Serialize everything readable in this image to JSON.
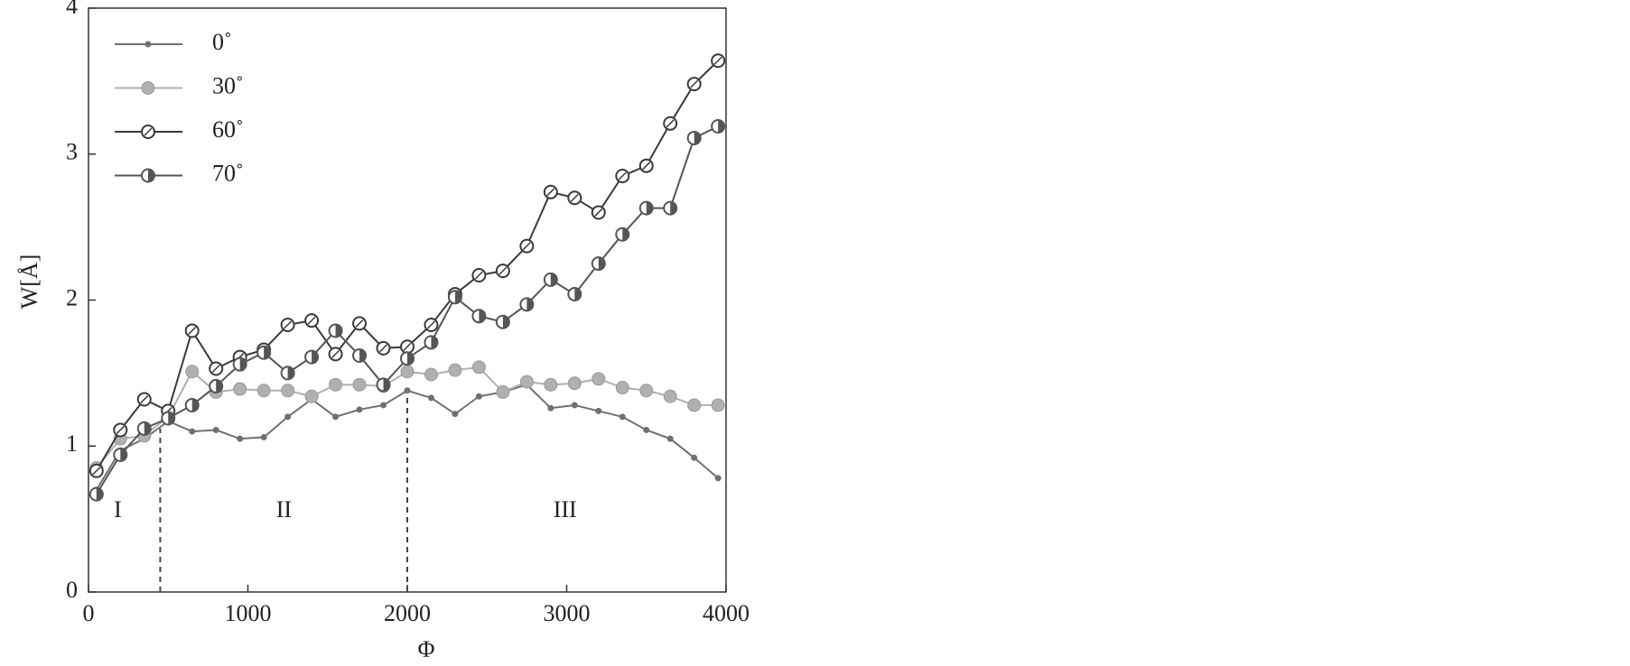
{
  "chart_data": {
    "type": "line",
    "x_label": "Φ",
    "y_label": "W[Å]",
    "x": [
      50,
      200,
      350,
      500,
      650,
      800,
      950,
      1100,
      1250,
      1400,
      1550,
      1700,
      1850,
      2000,
      2150,
      2300,
      2450,
      2600,
      2750,
      2900,
      3050,
      3200,
      3350,
      3500,
      3650,
      3800,
      3950
    ],
    "series": [
      {
        "name": "0˚",
        "color": "#707070",
        "marker": "dot",
        "values": [
          0.7,
          0.97,
          1.05,
          1.17,
          1.1,
          1.11,
          1.05,
          1.06,
          1.2,
          1.32,
          1.2,
          1.25,
          1.28,
          1.38,
          1.33,
          1.22,
          1.34,
          1.37,
          1.42,
          1.26,
          1.28,
          1.24,
          1.2,
          1.11,
          1.05,
          0.92,
          0.78
        ]
      },
      {
        "name": "30˚",
        "color": "#b0b0b0",
        "marker": "filled",
        "values": [
          0.85,
          1.05,
          1.07,
          1.2,
          1.51,
          1.37,
          1.39,
          1.38,
          1.38,
          1.34,
          1.42,
          1.42,
          1.41,
          1.51,
          1.49,
          1.52,
          1.54,
          1.37,
          1.44,
          1.42,
          1.43,
          1.46,
          1.4,
          1.38,
          1.34,
          1.28,
          1.28
        ]
      },
      {
        "name": "60˚",
        "color": "#3a3a3a",
        "marker": "open",
        "values": [
          0.83,
          1.11,
          1.32,
          1.24,
          1.79,
          1.53,
          1.61,
          1.66,
          1.83,
          1.86,
          1.63,
          1.84,
          1.67,
          1.68,
          1.83,
          2.04,
          2.17,
          2.2,
          2.37,
          2.74,
          2.7,
          2.6,
          2.85,
          2.92,
          3.21,
          3.48,
          3.64
        ]
      },
      {
        "name": "70˚",
        "color": "#555555",
        "marker": "half",
        "values": [
          0.67,
          0.94,
          1.12,
          1.19,
          1.28,
          1.41,
          1.56,
          1.64,
          1.5,
          1.61,
          1.79,
          1.62,
          1.42,
          1.6,
          1.71,
          2.02,
          1.89,
          1.85,
          1.97,
          2.14,
          2.04,
          2.25,
          2.45,
          2.63,
          2.63,
          3.11,
          3.19
        ]
      }
    ],
    "xlim": [
      0,
      4000
    ],
    "xticks": [
      0,
      1000,
      2000,
      3000,
      4000
    ],
    "ylim": [
      0,
      4
    ],
    "yticks": [
      0,
      1,
      2,
      3,
      4
    ],
    "legend": "upper left",
    "dividers": [
      {
        "x": 450,
        "y": 1.12
      },
      {
        "x": 2000,
        "y": 1.38
      }
    ],
    "annotations": [
      {
        "text": "I",
        "x": 184,
        "y": 0.55
      },
      {
        "text": "II",
        "x": 1226,
        "y": 0.55
      },
      {
        "text": "III",
        "x": 2990,
        "y": 0.55
      }
    ]
  }
}
